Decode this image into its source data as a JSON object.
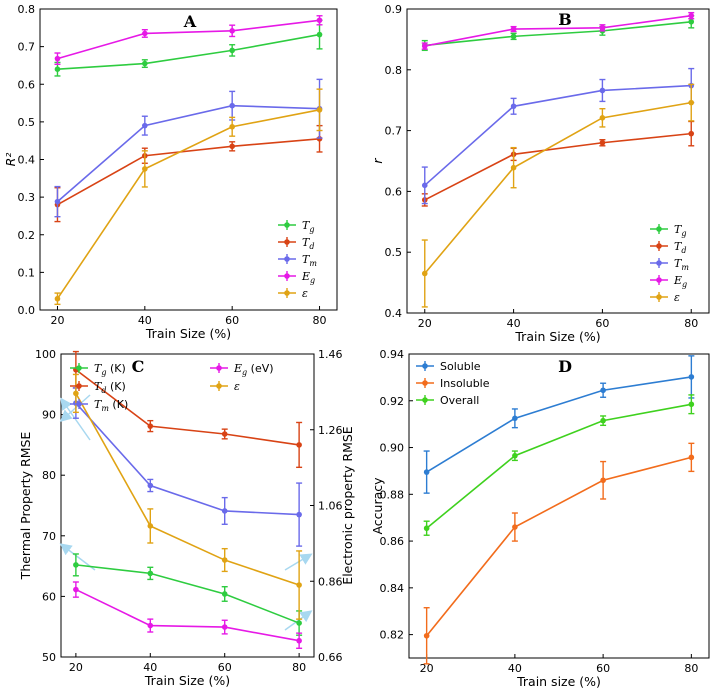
{
  "chart_data": [
    {
      "id": "A",
      "type": "line",
      "title": "A",
      "xlabel": "Train Size (%)",
      "ylabel": "R²",
      "x": [
        20,
        40,
        60,
        80
      ],
      "xticks": [
        "20",
        "40",
        "60",
        "80"
      ],
      "ylim": [
        0,
        0.8
      ],
      "yticks": [
        "0.0",
        "0.1",
        "0.2",
        "0.3",
        "0.4",
        "0.5",
        "0.6",
        "0.7",
        "0.8"
      ],
      "legend_position": "lower-right",
      "series": [
        {
          "name": "Tg",
          "label": "T",
          "sub": "g",
          "color": "#2ecc40",
          "values": [
            0.64,
            0.655,
            0.69,
            0.732
          ],
          "errors": [
            0.018,
            0.01,
            0.015,
            0.038
          ]
        },
        {
          "name": "Td",
          "label": "T",
          "sub": "d",
          "color": "#d84315",
          "values": [
            0.28,
            0.41,
            0.435,
            0.455
          ],
          "errors": [
            0.045,
            0.02,
            0.012,
            0.035
          ]
        },
        {
          "name": "Tm",
          "label": "T",
          "sub": "m",
          "color": "#6a6aea",
          "values": [
            0.288,
            0.49,
            0.543,
            0.535
          ],
          "errors": [
            0.04,
            0.025,
            0.038,
            0.078
          ]
        },
        {
          "name": "Eg",
          "label": "E",
          "sub": "g",
          "color": "#e619e6",
          "values": [
            0.668,
            0.735,
            0.742,
            0.77
          ],
          "errors": [
            0.015,
            0.01,
            0.015,
            0.012
          ]
        },
        {
          "name": "epsilon",
          "label": "ε",
          "sub": "",
          "color": "#e0a314",
          "values": [
            0.03,
            0.375,
            0.487,
            0.532
          ],
          "errors": [
            0.015,
            0.048,
            0.025,
            0.055
          ]
        }
      ]
    },
    {
      "id": "B",
      "type": "line",
      "title": "B",
      "xlabel": "Train Size (%)",
      "ylabel": "r",
      "x": [
        20,
        40,
        60,
        80
      ],
      "xticks": [
        "20",
        "40",
        "60",
        "80"
      ],
      "ylim": [
        0.4,
        0.9
      ],
      "yticks": [
        "0.4",
        "0.5",
        "0.6",
        "0.7",
        "0.8",
        "0.9"
      ],
      "legend_position": "lower-right",
      "series": [
        {
          "name": "Tg",
          "label": "T",
          "sub": "g",
          "color": "#2ecc40",
          "values": [
            0.84,
            0.855,
            0.864,
            0.879
          ],
          "errors": [
            0.008,
            0.005,
            0.007,
            0.01
          ]
        },
        {
          "name": "Td",
          "label": "T",
          "sub": "d",
          "color": "#d84315",
          "values": [
            0.586,
            0.661,
            0.68,
            0.695
          ],
          "errors": [
            0.01,
            0.01,
            0.005,
            0.02
          ]
        },
        {
          "name": "Tm",
          "label": "T",
          "sub": "m",
          "color": "#6a6aea",
          "values": [
            0.61,
            0.74,
            0.766,
            0.774
          ],
          "errors": [
            0.03,
            0.013,
            0.018,
            0.028
          ]
        },
        {
          "name": "Eg",
          "label": "E",
          "sub": "g",
          "color": "#e619e6",
          "values": [
            0.839,
            0.867,
            0.869,
            0.889
          ],
          "errors": [
            0.005,
            0.004,
            0.005,
            0.005
          ]
        },
        {
          "name": "epsilon",
          "label": "ε",
          "sub": "",
          "color": "#e0a314",
          "values": [
            0.465,
            0.639,
            0.721,
            0.746
          ],
          "errors": [
            0.055,
            0.033,
            0.015,
            0.03
          ]
        }
      ]
    },
    {
      "id": "C",
      "type": "line",
      "title": "C",
      "xlabel": "Train Size (%)",
      "ylabel": "Thermal Property RMSE",
      "ylabel_right": "Electronic property RMSE",
      "x": [
        20,
        40,
        60,
        80
      ],
      "xticks": [
        "20",
        "40",
        "60",
        "80"
      ],
      "ylim": [
        50,
        100
      ],
      "yticks": [
        "50",
        "60",
        "70",
        "80",
        "90",
        "100"
      ],
      "ylim_right": [
        0.66,
        1.46
      ],
      "yticks_right": [
        "0.66",
        "0.86",
        "1.06",
        "1.26",
        "1.46"
      ],
      "legend_position": "top, two columns",
      "series": [
        {
          "name": "Tg",
          "label": "T",
          "sub": "g",
          "unit": " (K)",
          "axis": "left",
          "color": "#2ecc40",
          "values": [
            65.2,
            63.8,
            60.4,
            55.6
          ],
          "errors": [
            1.8,
            1.0,
            1.2,
            2.0
          ]
        },
        {
          "name": "Td",
          "label": "T",
          "sub": "d",
          "unit": " (K)",
          "axis": "left",
          "color": "#d84315",
          "values": [
            97.4,
            88.1,
            86.8,
            85.0
          ],
          "errors": [
            3.0,
            0.9,
            0.8,
            3.7
          ]
        },
        {
          "name": "Tm",
          "label": "T",
          "sub": "m",
          "unit": " (K)",
          "axis": "left",
          "color": "#6a6aea",
          "values": [
            91.9,
            78.3,
            74.1,
            73.5
          ],
          "errors": [
            2.5,
            1.0,
            2.2,
            5.2
          ]
        },
        {
          "name": "Eg",
          "label": "E",
          "sub": "g",
          "unit": " (eV)",
          "axis": "right",
          "color": "#e619e6",
          "values": [
            0.838,
            0.743,
            0.739,
            0.703
          ],
          "errors": [
            0.02,
            0.017,
            0.018,
            0.02
          ]
        },
        {
          "name": "epsilon",
          "label": "ε",
          "sub": "",
          "unit": "",
          "axis": "right",
          "color": "#e0a314",
          "values": [
            1.356,
            1.006,
            0.916,
            0.85
          ],
          "errors": [
            0.05,
            0.045,
            0.03,
            0.09
          ]
        }
      ],
      "annotations": [
        "arrows pointing from Tg, Td, Tm, Eg and ε curves to the left and right y-axes"
      ]
    },
    {
      "id": "D",
      "type": "line",
      "title": "D",
      "xlabel": "Train size (%)",
      "ylabel": "Accuracy",
      "x": [
        20,
        40,
        60,
        80
      ],
      "xticks": [
        "20",
        "40",
        "60",
        "80"
      ],
      "ylim": [
        0.81,
        0.94
      ],
      "yticks": [
        "0.82",
        "0.84",
        "0.86",
        "0.88",
        "0.90",
        "0.92",
        "0.94"
      ],
      "legend_position": "top-left",
      "series": [
        {
          "name": "Soluble",
          "label": "Soluble",
          "sub": "",
          "color": "#2d7dd2",
          "values": [
            0.8895,
            0.9125,
            0.9245,
            0.9302
          ],
          "errors": [
            0.009,
            0.004,
            0.003,
            0.009
          ]
        },
        {
          "name": "Insoluble",
          "label": "Insoluble",
          "sub": "",
          "color": "#f26c1c",
          "values": [
            0.8195,
            0.866,
            0.886,
            0.8958
          ],
          "errors": [
            0.012,
            0.006,
            0.008,
            0.006
          ]
        },
        {
          "name": "Overall",
          "label": "Overall",
          "sub": "",
          "color": "#3fd11e",
          "values": [
            0.8655,
            0.8965,
            0.9115,
            0.9185
          ],
          "errors": [
            0.003,
            0.002,
            0.002,
            0.004
          ]
        }
      ]
    }
  ]
}
